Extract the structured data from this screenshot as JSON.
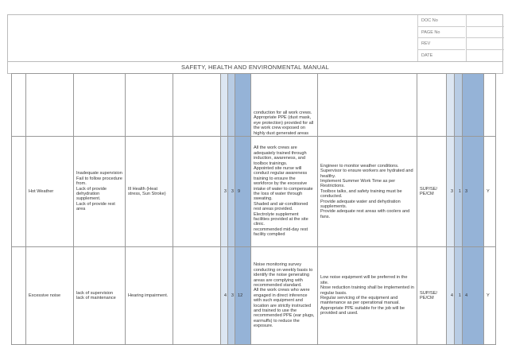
{
  "header": {
    "doc_labels": [
      "DOC No",
      "PAGE No",
      "REV",
      "DATE"
    ],
    "title": "SAFETY, HEALTH AND ENVIRONMENTAL MANUAL"
  },
  "rows": [
    {
      "hazard": "",
      "cause": "",
      "effect": "",
      "s": "",
      "l": "",
      "r": "",
      "controls": "conduction for all work crews.\nAppropriate PPE (dust mask, eye protection) provided for all the work crew exposed on highly dust generated areas",
      "additional": "",
      "resp": "",
      "s2": "",
      "l2": "",
      "r2": "",
      "ok": ""
    },
    {
      "hazard": "Hot Weather",
      "cause": "Inadequate supervision\nFail to follow procedure from.\nLack of provide dehydration supplement.\nLack of provide rest area",
      "effect": "Ill Health (Heat stress, Sun Stroke)",
      "s": "3",
      "l": "3",
      "r": "9",
      "controls": "All the work crews are adequately trained through induction, awareness, and toolbox trainings.\nAppointed site nurse will conduct regular awareness training to ensure the workforce by the excessive intake of water to compensate the loss of water through sweating.\nShaded and air-conditioned rest areas provided.\nElectrolyte supplement facilities provided at the site clinic.\nrecommended mid-day rest facility complied",
      "additional": "Engineer to monitor weather conditions.\nSupervisor to ensure workers are hydrated and healthy.\nImplement Summer Work Time as per Restrictions.\nToolbox talks, and safety training must be conducted.\nProvide adequate water and dehydration supplements.\nProvide adequate rest areas with coolers and fans.",
      "resp": "SUP/SE/ PE/CM",
      "s2": "3",
      "l2": "1",
      "r2": "3",
      "ok": "Y"
    },
    {
      "hazard": "Excessive noise",
      "cause": "lack of supervision\nlack of maintenance",
      "effect": "Hearing impairment.",
      "s": "4",
      "l": "3",
      "r": "12",
      "controls": "Noise monitoring survey conducting on weekly basis to identify the noise generating areas are complying with recommended standard.\nAll the work crews who were engaged in direct inference with such equipment and location are strictly instructed and trained to use the recommended PPE (ear plugs, earmuffs) to reduce the exposure.",
      "additional": "Low noise equipment will be preferred in the site.\nNose reduction training shall be implemented in regular basis.\nRegular servicing of the equipment and maintenance as per operational manual.\nAppropriate PPE suitable for the job will be provided and used.",
      "resp": "SUP/SE/ PE/CM",
      "s2": "4",
      "l2": "1",
      "r2": "4",
      "ok": "Y"
    }
  ]
}
